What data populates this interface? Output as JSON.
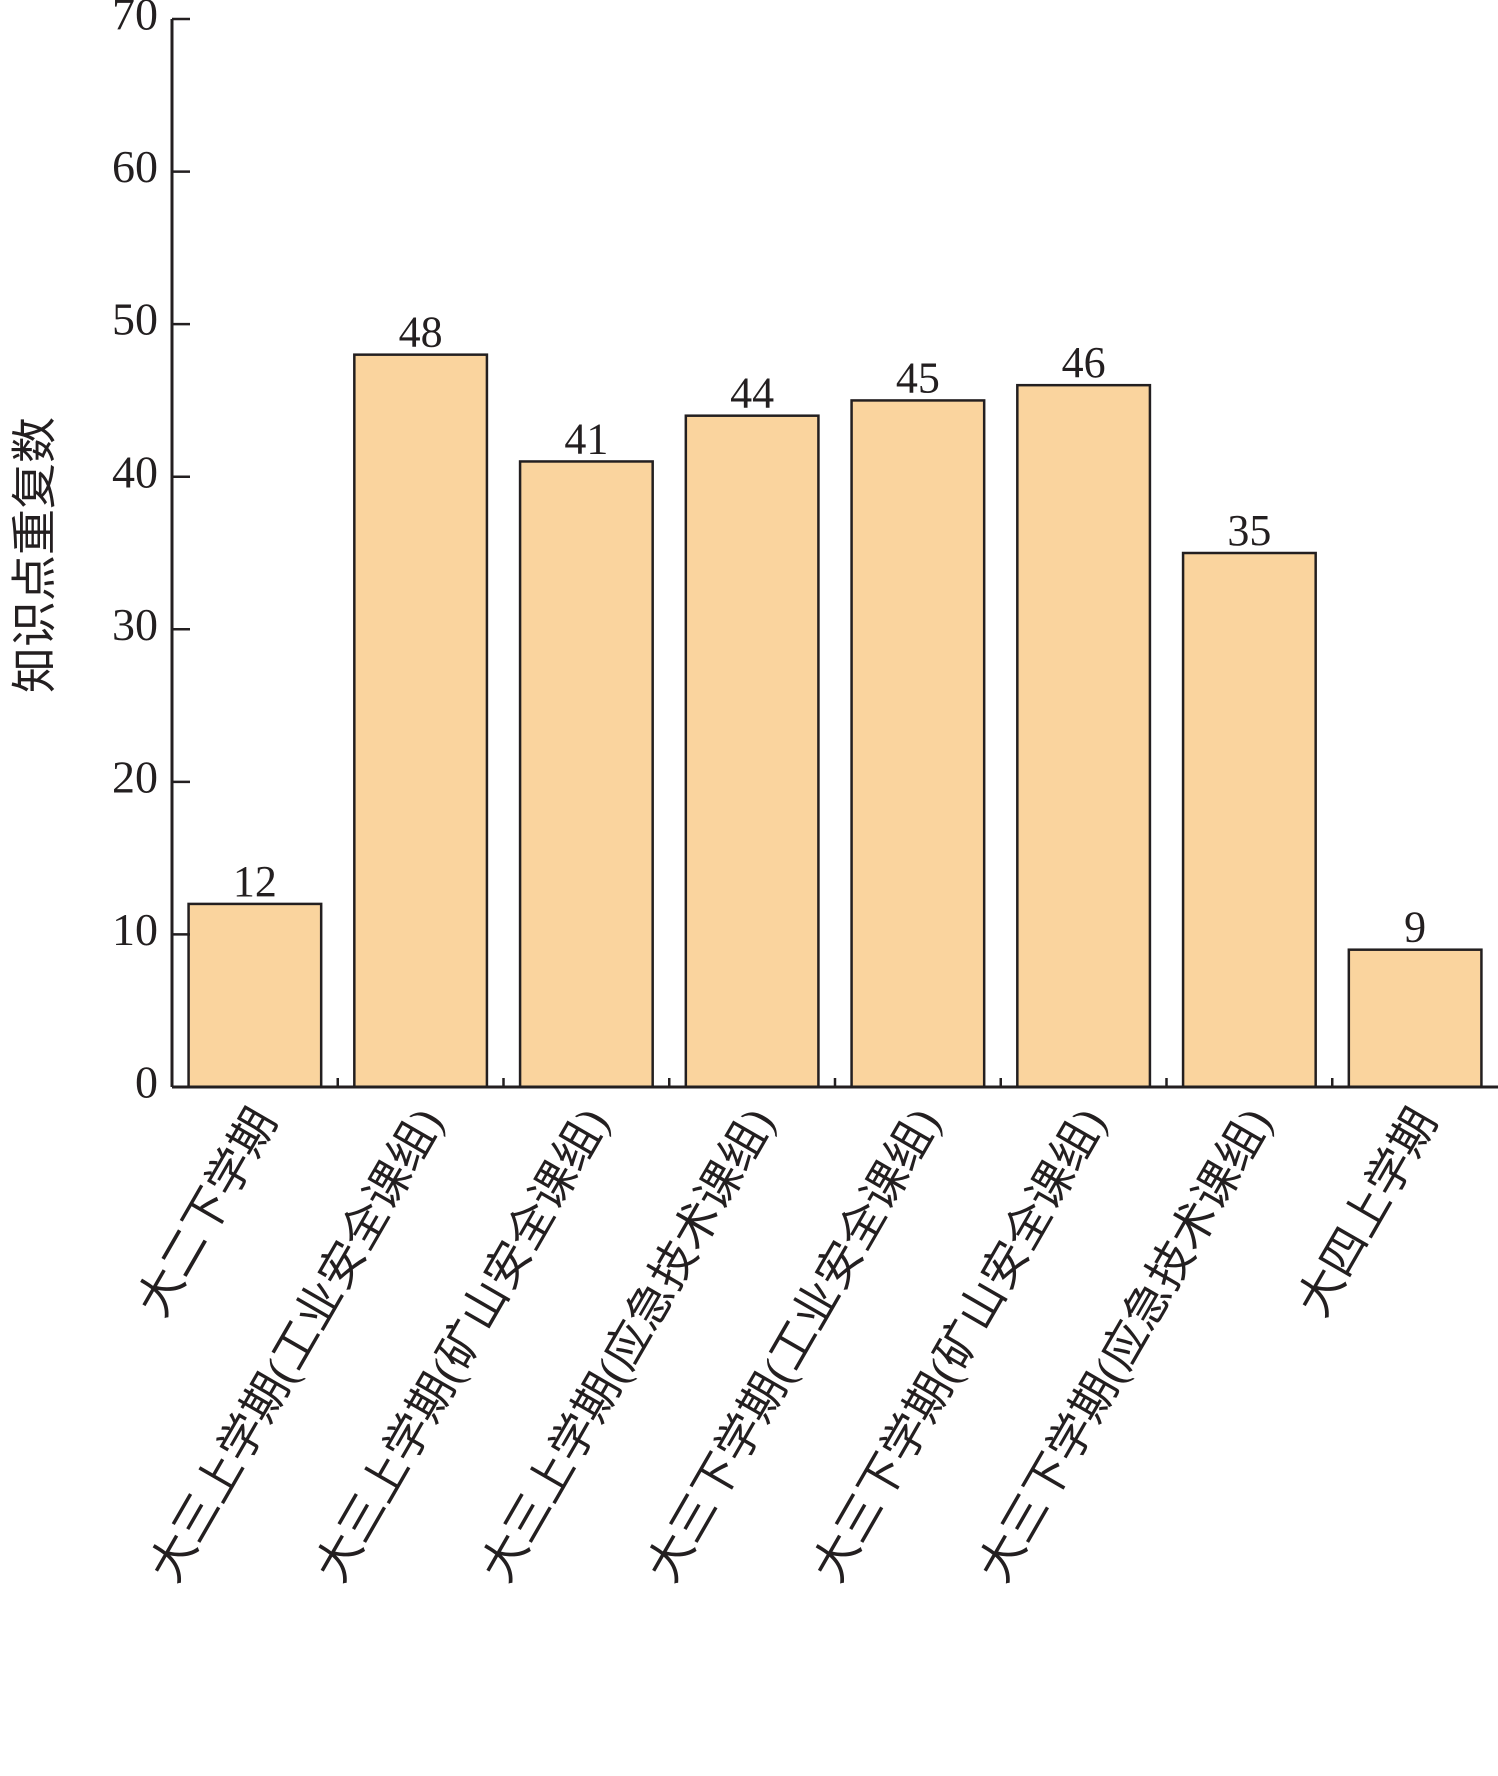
{
  "chart_data": {
    "type": "bar",
    "y_label": "知识点重复数",
    "categories": [
      "大二下学期",
      "大三上学期(工业安全课组)",
      "大三上学期(矿山安全课组)",
      "大三上学期(应急技术课组)",
      "大三下学期(工业安全课组)",
      "大三下学期(矿山安全课组)",
      "大三下学期(应急技术课组)",
      "大四上学期"
    ],
    "values": [
      12,
      48,
      41,
      44,
      45,
      46,
      35,
      9
    ],
    "color": "#fad49e",
    "ylim": [
      0,
      70
    ],
    "yticks": [
      0,
      10,
      20,
      30,
      40,
      50,
      60,
      70
    ],
    "grid": false
  }
}
